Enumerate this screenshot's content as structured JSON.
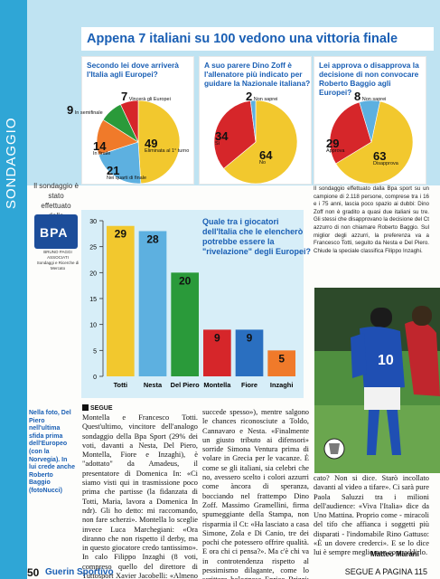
{
  "section": "SONDAGGIO",
  "headline": "Appena 7 italiani su 100 vedono una vittoria finale azzurra",
  "polls": [
    {
      "question": "Secondo lei dove arriverà l'Italia agli Europei?",
      "slices": [
        {
          "value": 49,
          "label": "Eliminata al 1° turno",
          "color": "#f2c82e"
        },
        {
          "value": 21,
          "label": "Nei quarti di finale",
          "color": "#5db0e0"
        },
        {
          "value": 14,
          "label": "In finale",
          "color": "#f07a2a"
        },
        {
          "value": 9,
          "label": "In semifinale",
          "color": "#2a9a3a"
        },
        {
          "value": 7,
          "label": "Vincerà gli Europei",
          "color": "#d6262a"
        }
      ]
    },
    {
      "question": "A suo parere Dino Zoff è l'allenatore più indicato per guidare la Nazionale italiana?",
      "slices": [
        {
          "value": 64,
          "label": "No",
          "color": "#f2c82e"
        },
        {
          "value": 34,
          "label": "Sì",
          "color": "#d6262a"
        },
        {
          "value": 2,
          "label": "Non saprei",
          "color": "#5db0e0"
        }
      ]
    },
    {
      "question": "Lei approva o disapprova la decisione di non convocare Roberto Baggio agli Europei?",
      "slices": [
        {
          "value": 63,
          "label": "Disapprova",
          "color": "#f2c82e"
        },
        {
          "value": 29,
          "label": "Approva",
          "color": "#d6262a"
        },
        {
          "value": 8,
          "label": "Non saprei",
          "color": "#5db0e0"
        }
      ]
    }
  ],
  "chart_data": {
    "type": "bar",
    "title": "Quale tra i giocatori dell'Italia che le elencherò potrebbe essere la \"rivelazione\" degli Europei?",
    "categories": [
      "Totti",
      "Nesta",
      "Del Piero",
      "Montella",
      "Fiore",
      "Inzaghi"
    ],
    "values": [
      29,
      28,
      20,
      9,
      9,
      5
    ],
    "colors": [
      "#f2c82e",
      "#5db0e0",
      "#2a9a3a",
      "#d6262a",
      "#2a6fc0",
      "#f07a2a"
    ],
    "yticks": [
      0,
      5,
      10,
      15,
      20,
      25,
      30
    ],
    "ylim": [
      0,
      30
    ]
  },
  "note_left": "Il sondaggio è stato effettuato dalla",
  "bpa": {
    "name": "BPA",
    "sub1": "BRUNO PAGGI ASSOCIATI",
    "sub2": "Sondaggi e Ricerche di Mercato"
  },
  "methodology": "Il sondaggio effettuato dalla Bpa sport su un campione di 2.118 persone, comprese tra i 16 e i 75 anni, lascia poco spazio ai dubbi: Dino Zoff non è gradito a quasi due italiani su tre. Gli stessi che disapprovano la decisione del Ct azzurro di non chiamare Roberto Baggio. Sul miglior degli azzurri, la preferenza va a Francesco Totti, seguito da Nesta e Del Piero. Chiude la speciale classifica Filippo Inzaghi.",
  "caption": "Nella foto, Del Piero nell'ultima sfida prima dell'Europeo (con la Norvegia). In lui crede anche Roberto Baggio (fotoNucci)",
  "segue_label": "SEGUE",
  "col1": "Montella e Francesco Totti. Quest'ultimo, vincitore dell'analogo sondaggio della Bpa Sport (29% dei voti, davanti a Nesta, Del Piero, Montella, Fiore e Inzaghi), è \"adottato\" da Amadeus, il presentatore di Domenica In: «Ci siamo visti qui in trasmissione poco prima che partisse (la fidanzata di Totti, Maria, lavora a Domenica In ndr). Gli ho detto: mi raccomando, non fare scherzi». Montella lo sceglie invece Luca Marchegiani: «Ora diranno che non rispetto il derby, ma in questo giocatore credo tantissimo». In calo Filippo Inzaghi (8 voti, compreso quello del direttore di Tuttosport Xavier Jacobelli: «Almeno per Filippo spero di non sbagliare previsione come mi",
  "col2": "succede spesso»), mentre salgono le chances riconosciute a Toldo, Cannavaro e Nesta. «Finalmente un giusto tributo ai difensori» sorride Simona Ventura prima di volare in Grecia per le vacanze. È come se gli italiani, sia celebri che no, avessero scelto i colori azzurri come àncora di speranza, bocciando nel frattempo Dino Zoff. Massimo Gramellini, firma spumeggiante della Stampa, non risparmia il Ct: «Ha lasciato a casa Simone, Zola e Di Canio, tre dei pochi che potessero offrire qualità. E ora chi ci pensa?». Ma c'è chi va in controtendenza rispetto al pessimismo dilagante, come lo scrittore bolognese Enrico Brizzi: «Ho scommesso sull'Italia, me la pagano a sette. Quanto ho gio-",
  "col3": "cato? Non si dice. Starò incollato davanti al video a tifare». Ci sarà pure Paola Saluzzi tra i milioni dell'audience: «Viva l'Italia» dice da Uno Mattina. Proprio come - miracoli del tifo che affianca i soggetti più disparati - l'indomabile Rino Gattuso: «È un dovere crederci». E se lo dice lui è sempre meglio non contraddirlo.",
  "author": "Matteo Marani",
  "footer": {
    "page": "50",
    "brand": "Guerin Sportivo",
    "next": "SEGUE A PAGINA 115"
  }
}
